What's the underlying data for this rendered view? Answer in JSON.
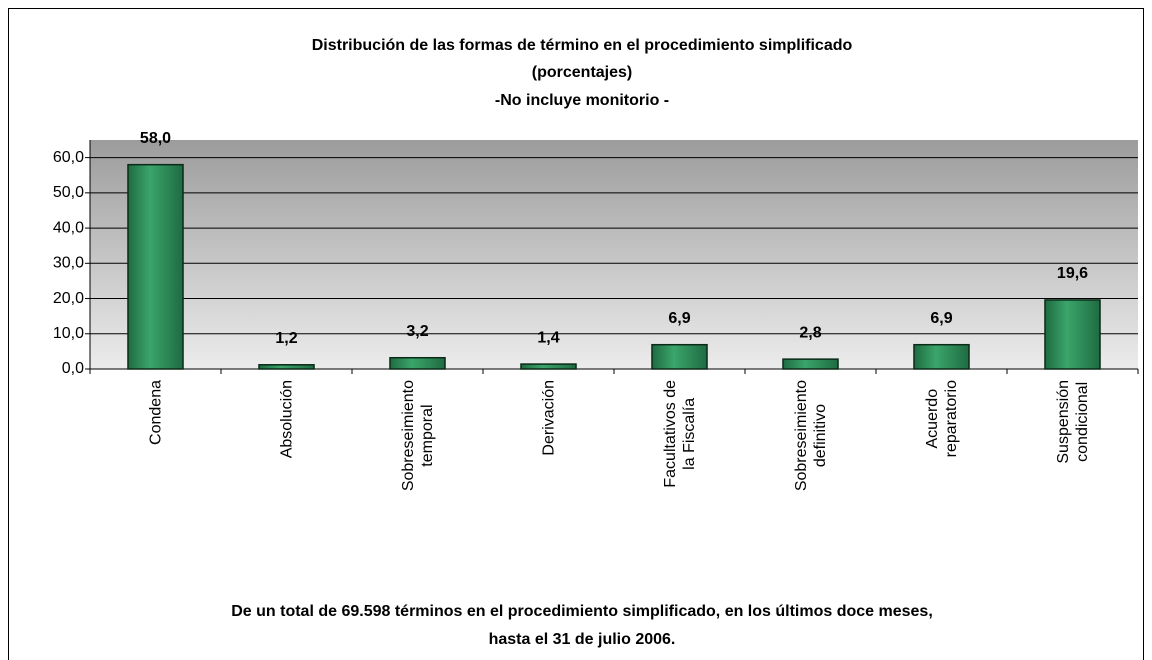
{
  "chart_data": {
    "type": "bar",
    "title": "Distribución de las formas de término en el procedimiento simplificado",
    "subtitle": "(porcentajes)",
    "subtitle2": "-No incluye monitorio -",
    "categories": [
      "Condena",
      "Absolución",
      "Sobreseimiento\ntemporal",
      "Derivación",
      "Facultativos de\nla Fiscalía",
      "Sobreseimiento\ndefinitivo",
      "Acuerdo\nreparatorio",
      "Suspensión\ncondicional"
    ],
    "values": [
      58.0,
      1.2,
      3.2,
      1.4,
      6.9,
      2.8,
      6.9,
      19.6
    ],
    "value_labels": [
      "58,0",
      "1,2",
      "3,2",
      "1,4",
      "6,9",
      "2,8",
      "6,9",
      "19,6"
    ],
    "color": "#2e8b57",
    "ylim": [
      0,
      65
    ],
    "yticks": [
      {
        "value": 0,
        "label": "0,0"
      },
      {
        "value": 10,
        "label": "10,0"
      },
      {
        "value": 20,
        "label": "20,0"
      },
      {
        "value": 30,
        "label": "30,0"
      },
      {
        "value": 40,
        "label": "40,0"
      },
      {
        "value": 50,
        "label": "50,0"
      },
      {
        "value": 60,
        "label": "60,0"
      }
    ],
    "grid": true,
    "footnote": [
      "De un total de 69.598 términos en el procedimiento simplificado, en los últimos doce meses,",
      "hasta el 31 de julio 2006."
    ]
  }
}
